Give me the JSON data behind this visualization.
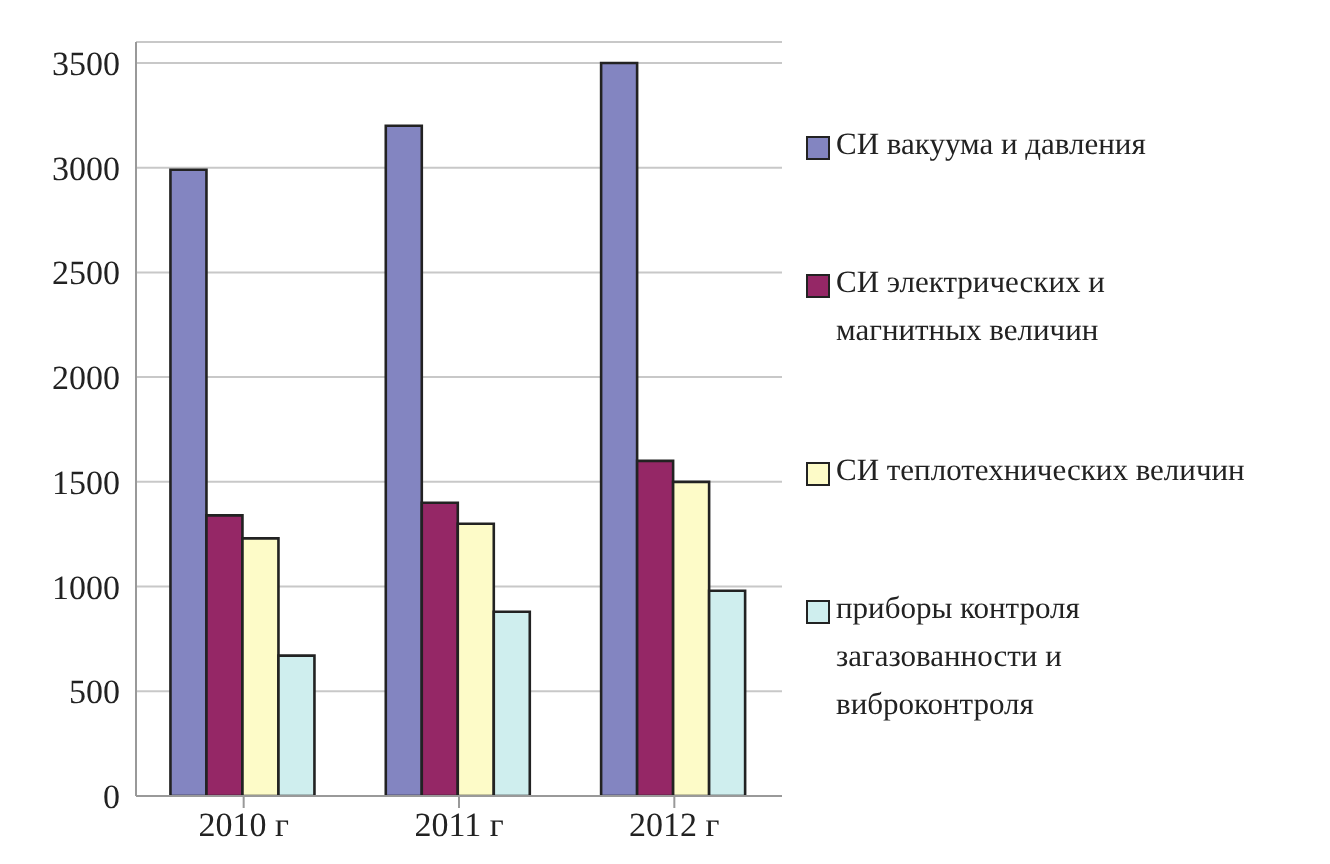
{
  "chart_data": {
    "type": "bar",
    "categories": [
      "2010 г",
      "2011 г",
      "2012 г"
    ],
    "series": [
      {
        "name": "СИ вакуума и давления",
        "color": "#8385c1",
        "values": [
          2990,
          3200,
          3500
        ]
      },
      {
        "name": "СИ электрических и магнитных величин",
        "color": "#952766",
        "values": [
          1340,
          1400,
          1600
        ]
      },
      {
        "name": "СИ теплотехнических величин",
        "color": "#fdfbc8",
        "values": [
          1230,
          1300,
          1500
        ]
      },
      {
        "name": "приборы контроля загазованности и виброконтроля",
        "color": "#cfeeee",
        "values": [
          670,
          880,
          980
        ]
      }
    ],
    "ylim": [
      0,
      3600
    ],
    "yticks": [
      0,
      500,
      1000,
      1500,
      2000,
      2500,
      3000,
      3500
    ],
    "grid": "y",
    "legend": "right"
  }
}
